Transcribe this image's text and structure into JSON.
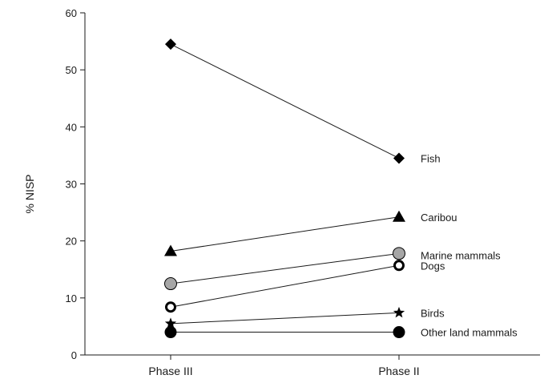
{
  "chart_data": {
    "type": "line",
    "categories": [
      "Phase III",
      "Phase II"
    ],
    "ylabel": "% NISP",
    "xlabel": "",
    "ylim": [
      0,
      60
    ],
    "yticks": [
      0,
      10,
      20,
      30,
      40,
      50,
      60
    ],
    "grid": false,
    "legend": "labels at right end of each series",
    "series": [
      {
        "name": "Fish",
        "values": [
          54.5,
          34.5
        ],
        "marker": "diamond"
      },
      {
        "name": "Caribou",
        "values": [
          18.2,
          24.2
        ],
        "marker": "triangle"
      },
      {
        "name": "Marine mammals",
        "values": [
          12.5,
          17.8
        ],
        "marker": "circle-gray"
      },
      {
        "name": "Dogs",
        "values": [
          8.4,
          15.7
        ],
        "marker": "circle-open"
      },
      {
        "name": "Birds",
        "values": [
          5.5,
          7.4
        ],
        "marker": "star"
      },
      {
        "name": "Other land mammals",
        "values": [
          4.0,
          4.0
        ],
        "marker": "circle-filled"
      }
    ],
    "colors": {
      "line": "#1a1a1a",
      "marker": "#000000",
      "gray_fill": "#a6a6a6"
    }
  }
}
